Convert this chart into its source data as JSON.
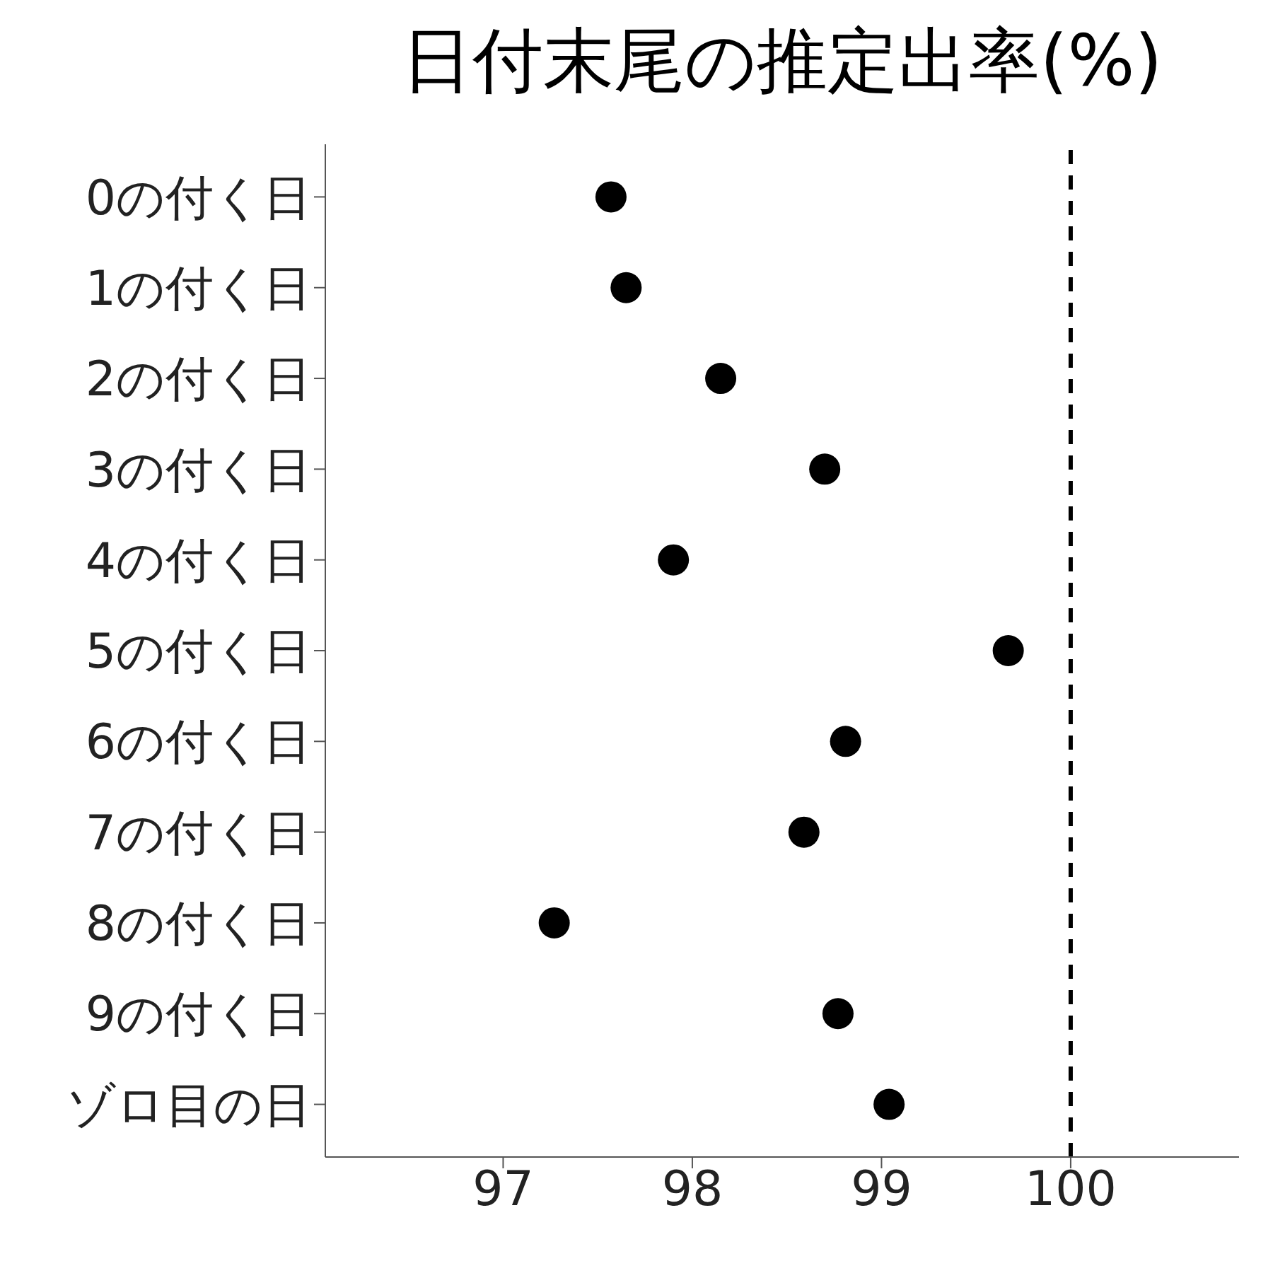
{
  "chart_data": {
    "type": "scatter",
    "title": "日付末尾の推定出率(%)",
    "orientation": "horizontal",
    "categories": [
      "0の付く日",
      "1の付く日",
      "2の付く日",
      "3の付く日",
      "4の付く日",
      "5の付く日",
      "6の付く日",
      "7の付く日",
      "8の付く日",
      "9の付く日",
      "ゾロ目の日"
    ],
    "values": [
      97.57,
      97.65,
      98.15,
      98.7,
      97.9,
      99.67,
      98.81,
      98.59,
      97.27,
      98.77,
      99.04
    ],
    "color": "#000000",
    "marker": "circle",
    "grid": false,
    "legend": false,
    "xlim": [
      96.06,
      100.89
    ],
    "xticks": [
      97,
      98,
      99,
      100
    ],
    "ref_lines": [
      {
        "axis": "x",
        "value": 100,
        "line_style": "dashed",
        "color": "#000000"
      }
    ]
  }
}
